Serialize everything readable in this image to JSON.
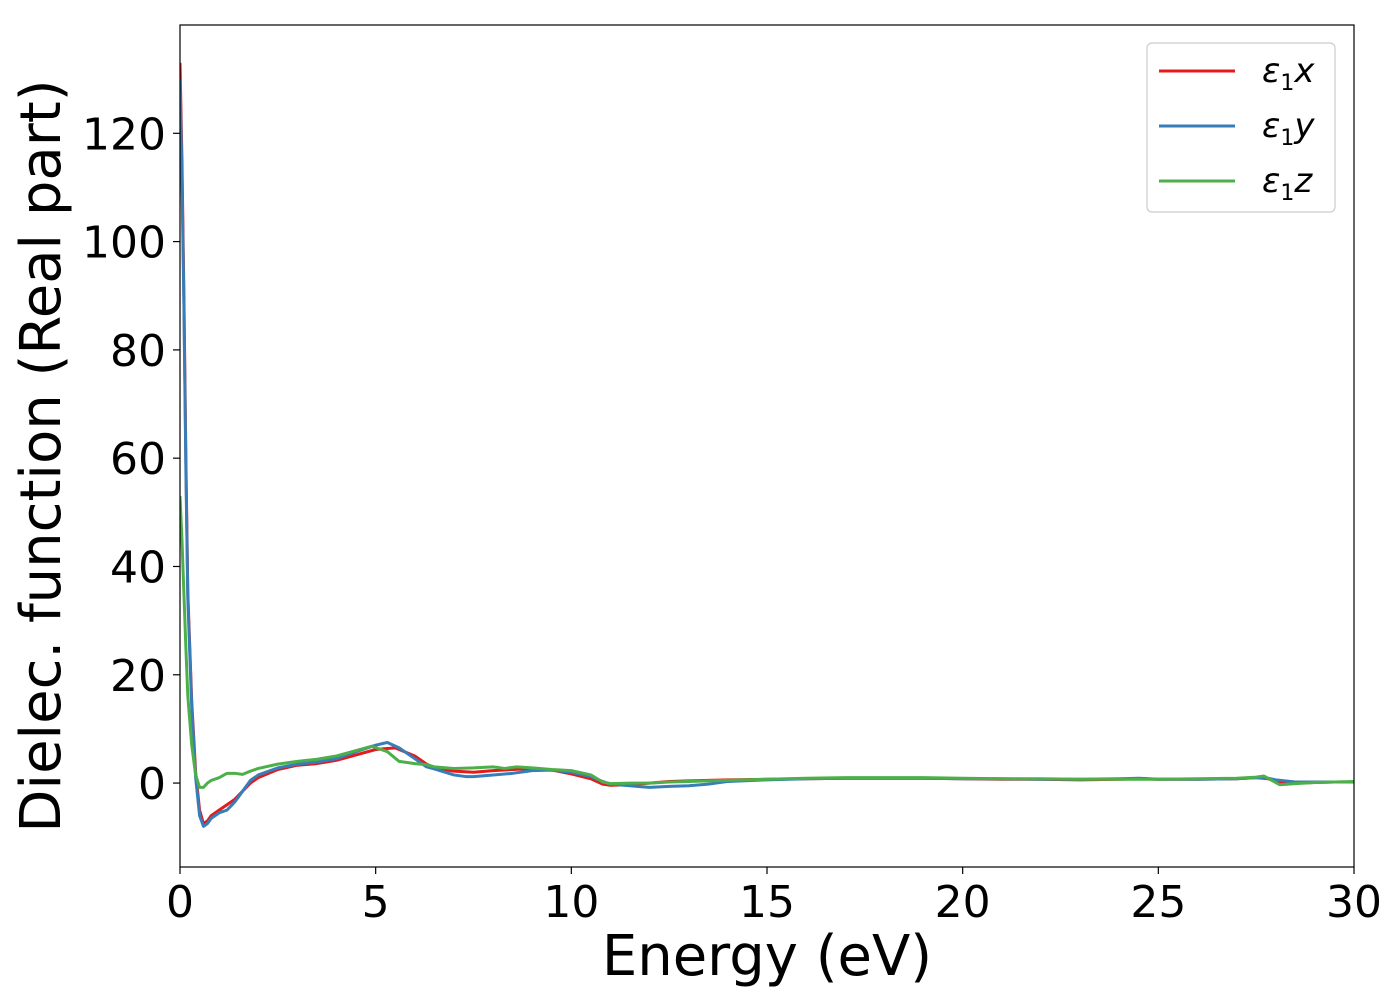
{
  "chart_data": {
    "type": "line",
    "title": "",
    "xlabel": "Energy (eV)",
    "ylabel": "Dielec. function (Real part)",
    "xlim": [
      0,
      30
    ],
    "ylim": [
      -15.5,
      140
    ],
    "xticks": [
      0,
      5,
      10,
      15,
      20,
      25,
      30
    ],
    "yticks": [
      0,
      20,
      40,
      60,
      80,
      100,
      120
    ],
    "grid": false,
    "legend_position": "top-right",
    "series": [
      {
        "name": "ε1x",
        "legend": {
          "base": "ε",
          "sub": "1",
          "suffix": "x"
        },
        "color": "#e41a1c",
        "points": [
          [
            0,
            133
          ],
          [
            0.05,
            115
          ],
          [
            0.1,
            90
          ],
          [
            0.15,
            60
          ],
          [
            0.2,
            35
          ],
          [
            0.3,
            15
          ],
          [
            0.4,
            2
          ],
          [
            0.5,
            -5
          ],
          [
            0.6,
            -7.5
          ],
          [
            0.7,
            -7
          ],
          [
            0.8,
            -6
          ],
          [
            1.0,
            -5
          ],
          [
            1.2,
            -4
          ],
          [
            1.4,
            -3
          ],
          [
            1.6,
            -1.5
          ],
          [
            1.8,
            0
          ],
          [
            2.0,
            1
          ],
          [
            2.5,
            2.5
          ],
          [
            3.0,
            3.3
          ],
          [
            3.5,
            3.6
          ],
          [
            4.0,
            4.2
          ],
          [
            4.5,
            5.2
          ],
          [
            5.0,
            6.2
          ],
          [
            5.5,
            6.5
          ],
          [
            6.0,
            5
          ],
          [
            6.3,
            3.5
          ],
          [
            6.5,
            2.8
          ],
          [
            7.0,
            2.2
          ],
          [
            7.5,
            2.0
          ],
          [
            8.0,
            2.3
          ],
          [
            8.5,
            2.5
          ],
          [
            9.0,
            2.7
          ],
          [
            9.5,
            2.4
          ],
          [
            10.0,
            1.7
          ],
          [
            10.5,
            0.8
          ],
          [
            10.8,
            -0.2
          ],
          [
            11.0,
            -0.4
          ],
          [
            11.5,
            -0.3
          ],
          [
            12.0,
            0
          ],
          [
            12.5,
            0.3
          ],
          [
            13.0,
            0.4
          ],
          [
            13.5,
            0.5
          ],
          [
            14.0,
            0.6
          ],
          [
            15.0,
            0.7
          ],
          [
            16.0,
            0.8
          ],
          [
            17.0,
            0.9
          ],
          [
            18.0,
            0.9
          ],
          [
            19.0,
            0.9
          ],
          [
            20.0,
            0.8
          ],
          [
            21.0,
            0.7
          ],
          [
            22.0,
            0.7
          ],
          [
            23.0,
            0.6
          ],
          [
            24.0,
            0.7
          ],
          [
            24.5,
            0.8
          ],
          [
            25.0,
            0.7
          ],
          [
            26.0,
            0.7
          ],
          [
            27.0,
            0.8
          ],
          [
            27.5,
            1.0
          ],
          [
            27.8,
            0.8
          ],
          [
            28.0,
            0.3
          ],
          [
            28.5,
            0
          ],
          [
            29.0,
            0.1
          ],
          [
            29.5,
            0.2
          ],
          [
            30.0,
            0.2
          ]
        ]
      },
      {
        "name": "ε1y",
        "legend": {
          "base": "ε",
          "sub": "1",
          "suffix": "y"
        },
        "color": "#377eb8",
        "points": [
          [
            0,
            130
          ],
          [
            0.05,
            112
          ],
          [
            0.1,
            88
          ],
          [
            0.15,
            58
          ],
          [
            0.2,
            34
          ],
          [
            0.3,
            14
          ],
          [
            0.4,
            1
          ],
          [
            0.5,
            -6
          ],
          [
            0.6,
            -8
          ],
          [
            0.7,
            -7.5
          ],
          [
            0.8,
            -6.5
          ],
          [
            1.0,
            -5.5
          ],
          [
            1.2,
            -5
          ],
          [
            1.4,
            -3.5
          ],
          [
            1.6,
            -1.5
          ],
          [
            1.8,
            0.5
          ],
          [
            2.0,
            1.5
          ],
          [
            2.5,
            2.8
          ],
          [
            3.0,
            3.5
          ],
          [
            3.5,
            3.9
          ],
          [
            4.0,
            4.5
          ],
          [
            4.5,
            5.8
          ],
          [
            5.0,
            7.0
          ],
          [
            5.3,
            7.5
          ],
          [
            5.6,
            6.5
          ],
          [
            6.0,
            4.5
          ],
          [
            6.3,
            3.0
          ],
          [
            6.5,
            2.6
          ],
          [
            7.0,
            1.5
          ],
          [
            7.3,
            1.2
          ],
          [
            7.5,
            1.2
          ],
          [
            8.0,
            1.5
          ],
          [
            8.5,
            1.8
          ],
          [
            9.0,
            2.3
          ],
          [
            9.5,
            2.4
          ],
          [
            10.0,
            2.0
          ],
          [
            10.5,
            1.2
          ],
          [
            10.8,
            0.3
          ],
          [
            11.0,
            -0.2
          ],
          [
            11.5,
            -0.5
          ],
          [
            12.0,
            -0.8
          ],
          [
            12.5,
            -0.6
          ],
          [
            13.0,
            -0.5
          ],
          [
            13.5,
            -0.2
          ],
          [
            14.0,
            0.3
          ],
          [
            15.0,
            0.6
          ],
          [
            16.0,
            0.8
          ],
          [
            17.0,
            0.9
          ],
          [
            18.0,
            0.9
          ],
          [
            19.0,
            0.9
          ],
          [
            20.0,
            0.8
          ],
          [
            21.0,
            0.8
          ],
          [
            22.0,
            0.7
          ],
          [
            23.0,
            0.7
          ],
          [
            24.0,
            0.8
          ],
          [
            24.5,
            0.9
          ],
          [
            25.0,
            0.7
          ],
          [
            26.0,
            0.7
          ],
          [
            27.0,
            0.8
          ],
          [
            27.5,
            1.0
          ],
          [
            27.8,
            0.9
          ],
          [
            28.0,
            0.6
          ],
          [
            28.5,
            0.2
          ],
          [
            29.0,
            0.2
          ],
          [
            29.5,
            0.2
          ],
          [
            30.0,
            0.2
          ]
        ]
      },
      {
        "name": "ε1z",
        "legend": {
          "base": "ε",
          "sub": "1",
          "suffix": "z"
        },
        "color": "#4daf4a",
        "points": [
          [
            0,
            53
          ],
          [
            0.05,
            45
          ],
          [
            0.1,
            35
          ],
          [
            0.15,
            25
          ],
          [
            0.2,
            16
          ],
          [
            0.3,
            7
          ],
          [
            0.4,
            1.5
          ],
          [
            0.5,
            -0.8
          ],
          [
            0.6,
            -0.8
          ],
          [
            0.7,
            0
          ],
          [
            0.8,
            0.5
          ],
          [
            1.0,
            1.0
          ],
          [
            1.2,
            1.8
          ],
          [
            1.4,
            1.8
          ],
          [
            1.6,
            1.6
          ],
          [
            1.8,
            2.2
          ],
          [
            2.0,
            2.7
          ],
          [
            2.5,
            3.5
          ],
          [
            3.0,
            4.0
          ],
          [
            3.5,
            4.4
          ],
          [
            4.0,
            5.0
          ],
          [
            4.5,
            6.0
          ],
          [
            4.9,
            6.8
          ],
          [
            5.3,
            5.8
          ],
          [
            5.6,
            4.0
          ],
          [
            6.0,
            3.6
          ],
          [
            6.3,
            3.4
          ],
          [
            6.5,
            3.0
          ],
          [
            7.0,
            2.7
          ],
          [
            7.5,
            2.8
          ],
          [
            8.0,
            3.0
          ],
          [
            8.3,
            2.7
          ],
          [
            8.6,
            3.0
          ],
          [
            9.0,
            2.8
          ],
          [
            9.5,
            2.5
          ],
          [
            10.0,
            2.3
          ],
          [
            10.5,
            1.5
          ],
          [
            10.8,
            0.2
          ],
          [
            11.0,
            -0.1
          ],
          [
            11.5,
            0
          ],
          [
            12.0,
            0
          ],
          [
            12.5,
            0.2
          ],
          [
            13.0,
            0.3
          ],
          [
            13.5,
            0.4
          ],
          [
            14.0,
            0.5
          ],
          [
            15.0,
            0.7
          ],
          [
            16.0,
            0.9
          ],
          [
            17.0,
            1.0
          ],
          [
            18.0,
            1.0
          ],
          [
            19.0,
            1.0
          ],
          [
            20.0,
            0.9
          ],
          [
            21.0,
            0.8
          ],
          [
            22.0,
            0.8
          ],
          [
            23.0,
            0.7
          ],
          [
            24.0,
            0.7
          ],
          [
            25.0,
            0.7
          ],
          [
            26.0,
            0.8
          ],
          [
            27.0,
            0.9
          ],
          [
            27.5,
            1.1
          ],
          [
            27.7,
            1.3
          ],
          [
            27.9,
            0.5
          ],
          [
            28.1,
            -0.3
          ],
          [
            28.5,
            -0.1
          ],
          [
            29.0,
            0.1
          ],
          [
            29.5,
            0.2
          ],
          [
            30.0,
            0.3
          ]
        ]
      }
    ]
  }
}
